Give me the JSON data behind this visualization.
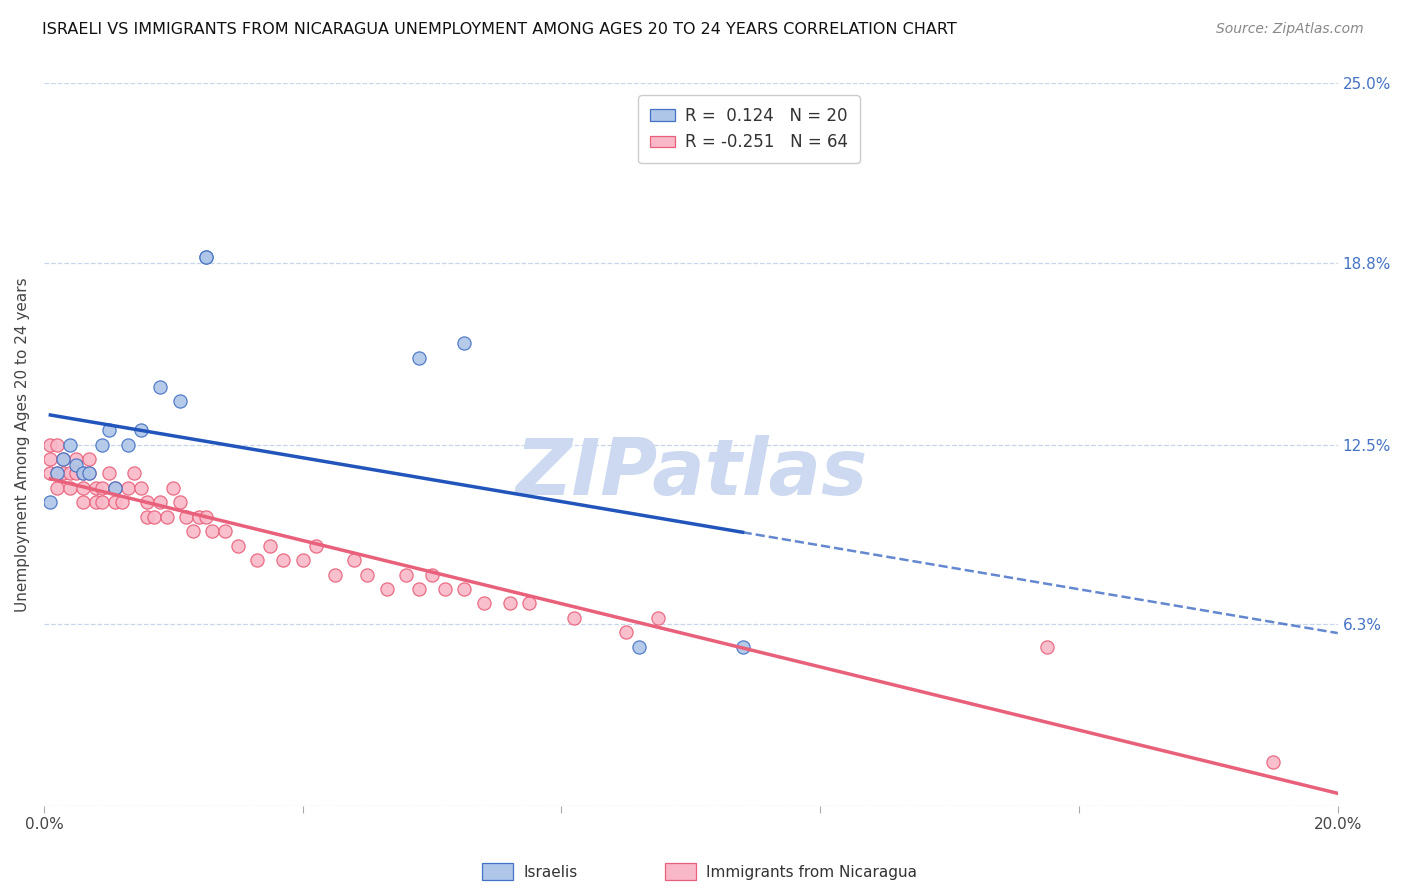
{
  "title": "ISRAELI VS IMMIGRANTS FROM NICARAGUA UNEMPLOYMENT AMONG AGES 20 TO 24 YEARS CORRELATION CHART",
  "source": "Source: ZipAtlas.com",
  "ylabel": "Unemployment Among Ages 20 to 24 years",
  "x_min": 0.0,
  "x_max": 0.2,
  "y_min": 0.0,
  "y_max": 0.25,
  "x_ticks": [
    0.0,
    0.04,
    0.08,
    0.12,
    0.16,
    0.2
  ],
  "y_tick_labels_right": [
    "25.0%",
    "18.8%",
    "12.5%",
    "6.3%"
  ],
  "y_tick_vals_right": [
    0.25,
    0.188,
    0.125,
    0.063
  ],
  "watermark": "ZIPatlas",
  "israelis_x": [
    0.001,
    0.002,
    0.003,
    0.004,
    0.005,
    0.006,
    0.007,
    0.009,
    0.01,
    0.011,
    0.013,
    0.015,
    0.018,
    0.021,
    0.025,
    0.025,
    0.058,
    0.065,
    0.092,
    0.108
  ],
  "israelis_y": [
    0.105,
    0.115,
    0.12,
    0.125,
    0.118,
    0.115,
    0.115,
    0.125,
    0.13,
    0.11,
    0.125,
    0.13,
    0.145,
    0.14,
    0.19,
    0.19,
    0.155,
    0.16,
    0.055,
    0.055
  ],
  "nicaragua_x": [
    0.001,
    0.001,
    0.001,
    0.002,
    0.002,
    0.002,
    0.003,
    0.003,
    0.004,
    0.004,
    0.005,
    0.005,
    0.006,
    0.006,
    0.006,
    0.007,
    0.007,
    0.008,
    0.008,
    0.009,
    0.009,
    0.01,
    0.011,
    0.011,
    0.012,
    0.013,
    0.014,
    0.015,
    0.016,
    0.016,
    0.017,
    0.018,
    0.019,
    0.02,
    0.021,
    0.022,
    0.023,
    0.024,
    0.025,
    0.026,
    0.028,
    0.03,
    0.033,
    0.035,
    0.037,
    0.04,
    0.042,
    0.045,
    0.048,
    0.05,
    0.053,
    0.056,
    0.058,
    0.06,
    0.062,
    0.065,
    0.068,
    0.072,
    0.075,
    0.082,
    0.09,
    0.095,
    0.155,
    0.19
  ],
  "nicaragua_y": [
    0.115,
    0.12,
    0.125,
    0.11,
    0.115,
    0.125,
    0.115,
    0.12,
    0.11,
    0.115,
    0.115,
    0.12,
    0.105,
    0.11,
    0.115,
    0.115,
    0.12,
    0.105,
    0.11,
    0.105,
    0.11,
    0.115,
    0.105,
    0.11,
    0.105,
    0.11,
    0.115,
    0.11,
    0.1,
    0.105,
    0.1,
    0.105,
    0.1,
    0.11,
    0.105,
    0.1,
    0.095,
    0.1,
    0.1,
    0.095,
    0.095,
    0.09,
    0.085,
    0.09,
    0.085,
    0.085,
    0.09,
    0.08,
    0.085,
    0.08,
    0.075,
    0.08,
    0.075,
    0.08,
    0.075,
    0.075,
    0.07,
    0.07,
    0.07,
    0.065,
    0.06,
    0.065,
    0.055,
    0.015
  ],
  "israeli_color": "#aec6e8",
  "israeli_edge_color": "#4472c4",
  "nicaragua_color": "#f9b8c8",
  "nicaragua_edge_color": "#e8607a",
  "israeli_line_color": "#2255bb",
  "nicaragua_line_color": "#e8607a",
  "background_color": "#ffffff",
  "grid_color": "#c8d4e8",
  "watermark_color": "#ccd9f0",
  "watermark_fontsize": 56
}
